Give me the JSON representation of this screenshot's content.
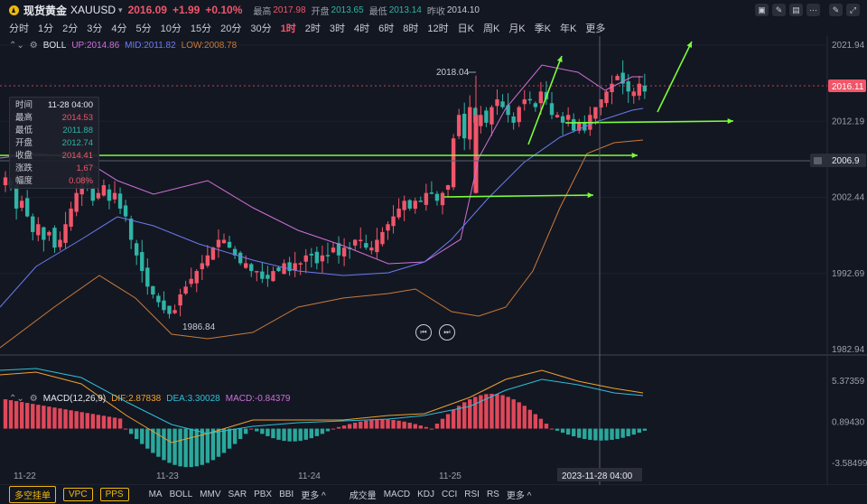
{
  "header": {
    "symbol_name": "现货黄金",
    "symbol_code": "XAUUSD",
    "dropdown_glyph": "▾",
    "price": "2016.09",
    "change": "+1.99",
    "change_pct": "+0.10%",
    "high_label": "最高",
    "high": "2017.98",
    "open_label": "开盘",
    "open": "2013.65",
    "low_label": "最低",
    "low": "2013.14",
    "prev_label": "昨收",
    "prev": "2014.10"
  },
  "toolbar_icons": [
    "chart-type-icon",
    "draw-icon",
    "layout-icon",
    "more-icon",
    "draw-icon-2",
    "fullscreen-icon"
  ],
  "timeframes": [
    "分时",
    "1分",
    "2分",
    "3分",
    "4分",
    "5分",
    "10分",
    "15分",
    "20分",
    "30分",
    "1时",
    "2时",
    "3时",
    "4时",
    "6时",
    "8时",
    "12时",
    "日K",
    "周K",
    "月K",
    "季K",
    "年K",
    "更多"
  ],
  "active_timeframe": "1时",
  "boll": {
    "name": "BOLL",
    "up": "UP:2014.86",
    "mid": "MID:2011.82",
    "low": "LOW:2008.78"
  },
  "infobox": [
    {
      "k": "时间",
      "v": "11-28 04:00",
      "c": "#e6e8ee"
    },
    {
      "k": "最高",
      "v": "2014.53",
      "c": "#f0566a"
    },
    {
      "k": "最低",
      "v": "2011.88",
      "c": "#2fb4a6"
    },
    {
      "k": "开盘",
      "v": "2012.74",
      "c": "#2fb4a6"
    },
    {
      "k": "收盘",
      "v": "2014.41",
      "c": "#f0566a"
    },
    {
      "k": "涨跌",
      "v": "1.67",
      "c": "#f0566a"
    },
    {
      "k": "幅度",
      "v": "0.08%",
      "c": "#f0566a"
    }
  ],
  "price_axis": [
    "2021.94",
    "2012.19",
    "2002.44",
    "1992.69",
    "1982.94"
  ],
  "current_price_tag": "2016.11",
  "crosshair_price_tag": "2006.9",
  "annotations": {
    "high_mark": "2018.04",
    "low_mark": "1986.84"
  },
  "macd": {
    "name": "MACD(12,26,9)",
    "dif": "DIF:2.87838",
    "dea": "DEA:3.30028",
    "macd": "MACD:-0.84379"
  },
  "macd_axis": [
    "5.37359",
    "0.89430",
    "-3.58499"
  ],
  "time_axis": [
    "11-22",
    "11-23",
    "11-24",
    "11-25"
  ],
  "crosshair_time": "2023-11-28 04:00",
  "bottom_bar": {
    "pills": [
      "多空挂单",
      "VPC",
      "PPS"
    ],
    "main_indicators": [
      "MA",
      "BOLL",
      "MMV",
      "SAR",
      "PBX",
      "BBI",
      "更多 ^"
    ],
    "sub_indicators": [
      "成交量",
      "MACD",
      "KDJ",
      "CCI",
      "RSI",
      "RS",
      "更多 ^"
    ]
  },
  "colors": {
    "up": "#f0566a",
    "down": "#2fb4a6",
    "arrow": "#7CFC3A",
    "boll_up": "#d070d8",
    "boll_mid": "#6b7cf0",
    "boll_low": "#c97a3a"
  }
}
